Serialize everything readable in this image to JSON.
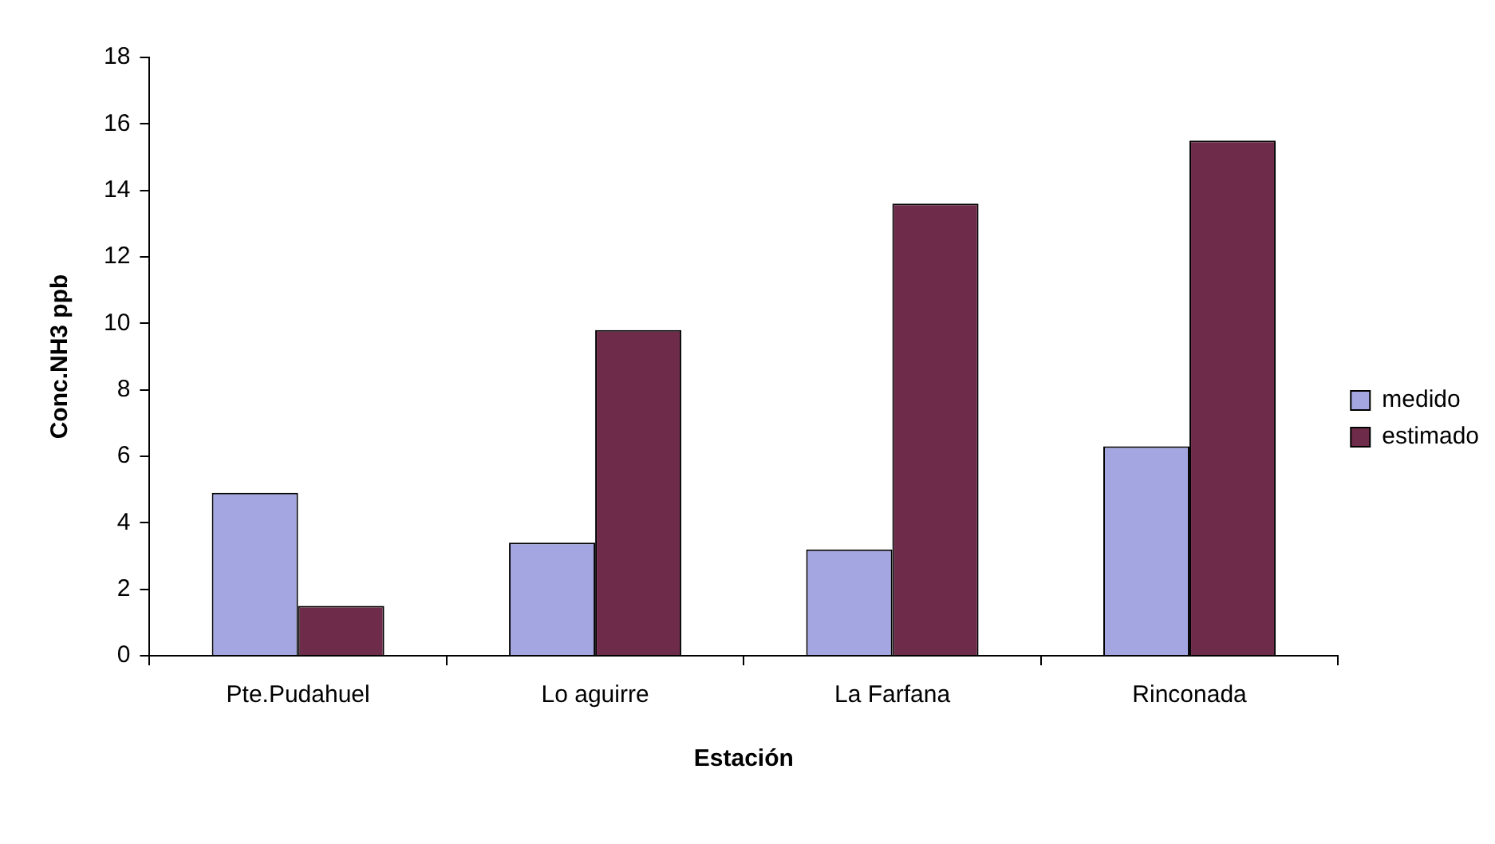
{
  "chart_data": {
    "type": "bar",
    "xlabel": "Estación",
    "ylabel": "Conc.NH3 ppb",
    "categories": [
      "Pte.Pudahuel",
      "Lo aguirre",
      "La Farfana",
      "Rinconada"
    ],
    "series": [
      {
        "name": "medido",
        "color": "#a3a6e0",
        "values": [
          4.9,
          3.4,
          3.2,
          6.3
        ]
      },
      {
        "name": "estimado",
        "color": "#6e2c4a",
        "values": [
          1.5,
          9.8,
          13.6,
          15.5
        ]
      }
    ],
    "ylim": [
      0,
      18
    ],
    "yticks": [
      0,
      2,
      4,
      6,
      8,
      10,
      12,
      14,
      16,
      18
    ],
    "legend": "right"
  }
}
